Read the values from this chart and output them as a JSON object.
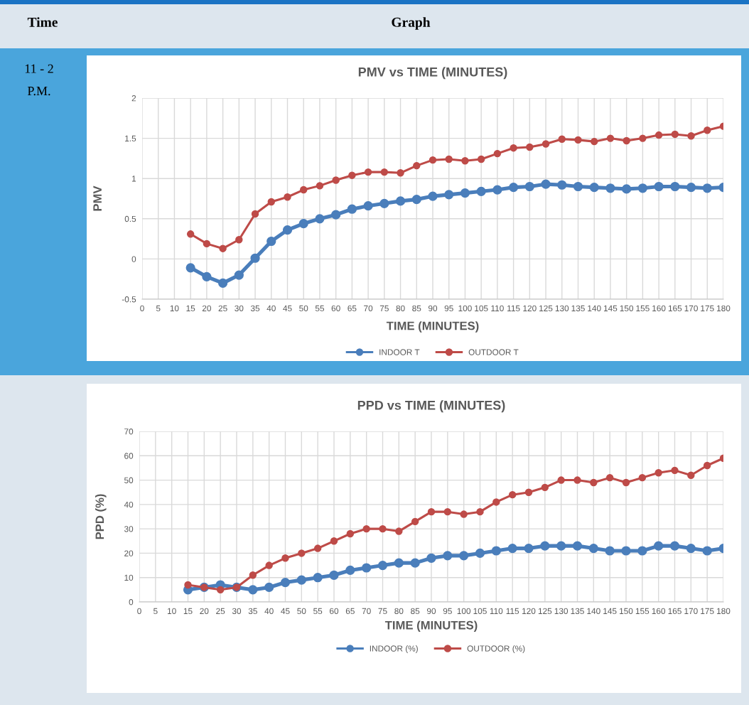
{
  "chart_data": [
    {
      "type": "line",
      "title": "PMV vs TIME (MINUTES)",
      "xlabel": "TIME (MINUTES)",
      "ylabel": "PMV",
      "annotations": [
        "Time",
        "Graph",
        "11 - 2 P.M."
      ],
      "categories": [
        "0",
        "5",
        "10",
        "15",
        "20",
        "25",
        "30",
        "35",
        "40",
        "45",
        "50",
        "55",
        "60",
        "65",
        "70",
        "75",
        "80",
        "85",
        "90",
        "95",
        "100",
        "105",
        "110",
        "115",
        "120",
        "125",
        "130",
        "135",
        "140",
        "145",
        "150",
        "155",
        "160",
        "165",
        "170",
        "175",
        "180"
      ],
      "series": [
        {
          "name": "INDOOR T",
          "color": "#4a7ebb",
          "values": [
            null,
            null,
            null,
            -0.11,
            -0.22,
            -0.3,
            -0.2,
            0.01,
            0.22,
            0.36,
            0.44,
            0.5,
            0.55,
            0.62,
            0.66,
            0.69,
            0.72,
            0.74,
            0.78,
            0.8,
            0.82,
            0.84,
            0.86,
            0.89,
            0.9,
            0.93,
            0.92,
            0.9,
            0.89,
            0.88,
            0.87,
            0.88,
            0.9,
            0.9,
            0.89,
            0.88,
            0.89
          ]
        },
        {
          "name": "OUTDOOR T",
          "color": "#be4b48",
          "values": [
            null,
            null,
            null,
            0.31,
            0.19,
            0.13,
            0.24,
            0.56,
            0.71,
            0.77,
            0.86,
            0.91,
            0.98,
            1.04,
            1.08,
            1.08,
            1.07,
            1.16,
            1.23,
            1.24,
            1.22,
            1.24,
            1.31,
            1.38,
            1.39,
            1.43,
            1.49,
            1.48,
            1.46,
            1.5,
            1.47,
            1.5,
            1.54,
            1.55,
            1.53,
            1.6,
            1.65
          ]
        }
      ],
      "ylim": [
        -0.5,
        2
      ],
      "yticks": [
        {
          "value": -0.5,
          "label": "-0.5"
        },
        0,
        0.5,
        1,
        1.5,
        2
      ],
      "grid": true,
      "legend": "bottom",
      "marker": "circle",
      "line_style": "solid"
    },
    {
      "type": "line",
      "title": "PPD vs TIME (MINUTES)",
      "xlabel": "TIME (MINUTES)",
      "ylabel": "PPD (%)",
      "categories": [
        "0",
        "5",
        "10",
        "15",
        "20",
        "25",
        "30",
        "35",
        "40",
        "45",
        "50",
        "55",
        "60",
        "65",
        "70",
        "75",
        "80",
        "85",
        "90",
        "95",
        "100",
        "105",
        "110",
        "115",
        "120",
        "125",
        "130",
        "135",
        "140",
        "145",
        "150",
        "155",
        "160",
        "165",
        "170",
        "175",
        "180"
      ],
      "series": [
        {
          "name": "INDOOR (%)",
          "color": "#4a7ebb",
          "values": [
            null,
            null,
            null,
            5,
            6,
            7,
            6,
            5,
            6,
            8,
            9,
            10,
            11,
            13,
            14,
            15,
            16,
            16,
            18,
            19,
            19,
            20,
            21,
            22,
            22,
            23,
            23,
            23,
            22,
            21,
            21,
            21,
            23,
            23,
            22,
            21,
            22
          ]
        },
        {
          "name": "OUTDOOR (%)",
          "color": "#be4b48",
          "values": [
            null,
            null,
            null,
            7,
            6,
            5,
            6,
            11,
            15,
            18,
            20,
            22,
            25,
            28,
            30,
            30,
            29,
            33,
            37,
            37,
            36,
            37,
            41,
            44,
            45,
            47,
            50,
            50,
            49,
            51,
            49,
            51,
            53,
            54,
            52,
            56,
            59
          ]
        }
      ],
      "ylim": [
        0,
        70
      ],
      "yticks": [
        0,
        10,
        20,
        30,
        40,
        50,
        60,
        70
      ],
      "grid": true,
      "legend": "bottom",
      "marker": "circle",
      "line_style": "solid"
    }
  ]
}
